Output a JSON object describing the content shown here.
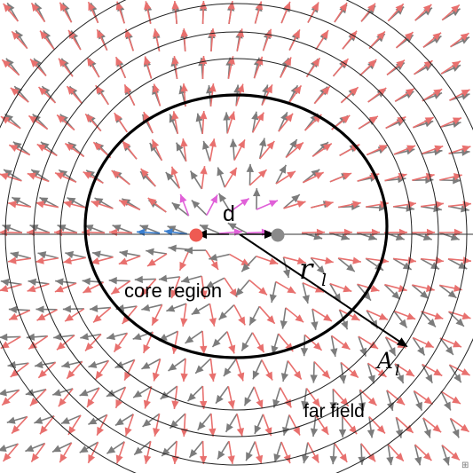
{
  "labels": {
    "separation": "d",
    "core": "core region",
    "far": "far field",
    "radius_main": "r",
    "radius_sub": "l",
    "amp_main": "A",
    "amp_sub": "l"
  },
  "colors": {
    "red_arrow": "#e8706e",
    "gray_arrow": "#7c7c7c",
    "magenta_arrow": "#e060d8",
    "blue_arrow": "#3a7fd0",
    "red_charge": "#ee5a52",
    "gray_charge": "#8a8a8a",
    "circle": "#000000"
  },
  "glyphs": {
    "corner_mark": "⊞"
  }
}
